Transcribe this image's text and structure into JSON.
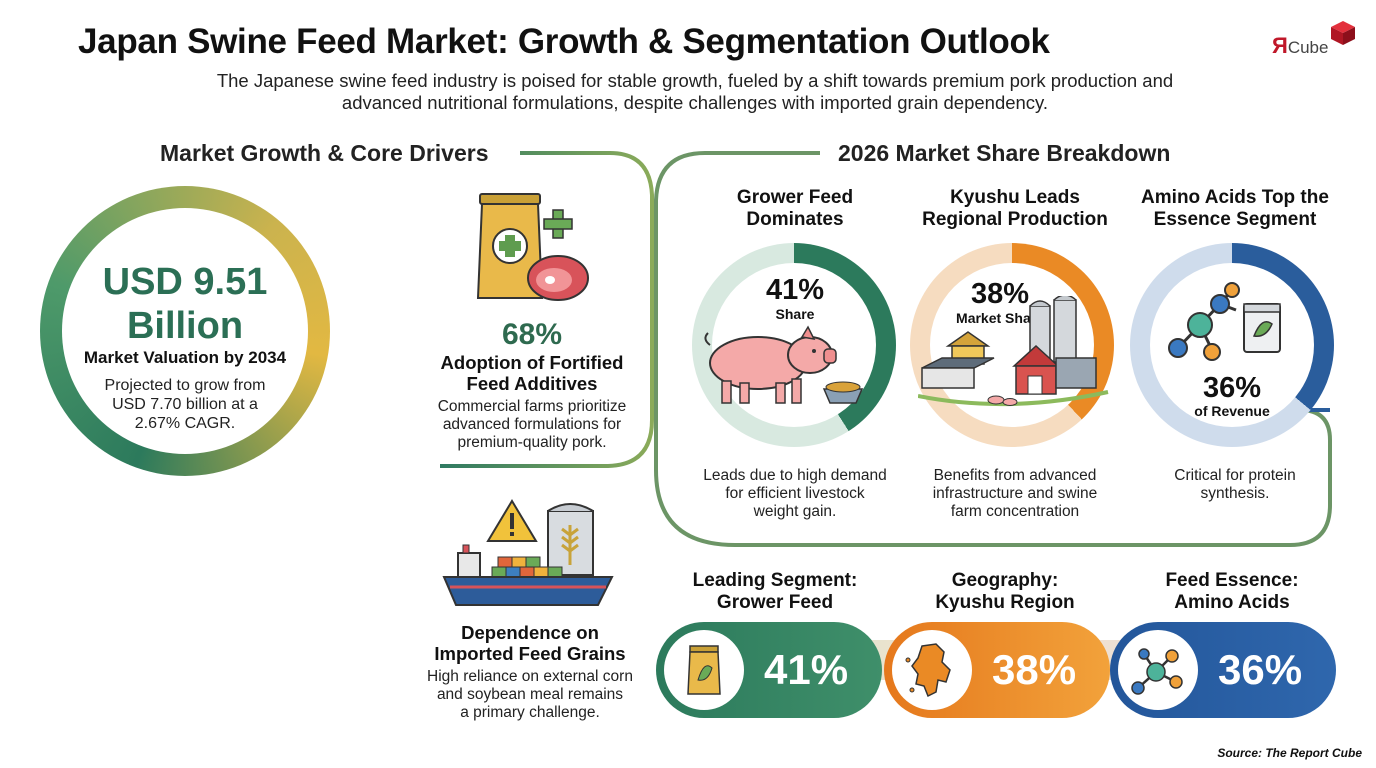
{
  "header": {
    "title": "Japan Swine Feed Market: Growth & Segmentation Outlook",
    "subtitle_line1": "The Japanese swine feed industry is poised for stable growth, fueled by a shift towards premium pork production and",
    "subtitle_line2": "advanced nutritional formulations, despite challenges with imported grain dependency."
  },
  "logo": {
    "letter": "Я",
    "text": "Cube"
  },
  "left_section": {
    "heading": "Market Growth & Core Drivers",
    "valuation": {
      "value_line1": "USD 9.51",
      "value_line2": "Billion",
      "label": "Market Valuation by 2034",
      "desc_line1": "Projected to grow from",
      "desc_line2": "USD 7.70 billion at a",
      "desc_line3": "2.67% CAGR."
    },
    "additives": {
      "stat": "68%",
      "heading_line1": "Adoption of Fortified",
      "heading_line2": "Feed Additives",
      "desc_line1": "Commercial farms prioritize",
      "desc_line2": "advanced formulations for",
      "desc_line3": "premium-quality pork."
    },
    "imports": {
      "heading_line1": "Dependence on",
      "heading_line2": "Imported Feed Grains",
      "desc_line1": "High reliance on external corn",
      "desc_line2": "and soybean meal remains",
      "desc_line3": "a primary challenge."
    }
  },
  "right_section": {
    "heading": "2026 Market Share Breakdown",
    "cards": [
      {
        "heading_line1": "Grower Feed",
        "heading_line2": "Dominates",
        "percent": "41%",
        "percent_label": "Share",
        "share_value": 41,
        "desc_line1": "Leads due to high demand",
        "desc_line2": "for efficient livestock",
        "desc_line3": "weight gain."
      },
      {
        "heading_line1": "Kyushu Leads",
        "heading_line2": "Regional Production",
        "percent": "38%",
        "percent_label": "Market Share",
        "share_value": 38,
        "desc_line1": "Benefits from advanced",
        "desc_line2": "infrastructure and swine",
        "desc_line3": "farm concentration"
      },
      {
        "heading_line1": "Amino Acids Top the",
        "heading_line2": "Essence Segment",
        "percent": "36%",
        "percent_label": "of Revenue",
        "share_value": 36,
        "desc_line1": "Critical for protein",
        "desc_line2": "synthesis.",
        "desc_line3": ""
      }
    ],
    "summary": [
      {
        "heading_line1": "Leading Segment:",
        "heading_line2": "Grower Feed",
        "value": "41%"
      },
      {
        "heading_line1": "Geography:",
        "heading_line2": "Kyushu Region",
        "value": "38%"
      },
      {
        "heading_line1": "Feed Essence:",
        "heading_line2": "Amino Acids",
        "value": "36%"
      }
    ]
  },
  "colors": {
    "green": "#2c7a5c",
    "orange": "#ea8a25",
    "blue": "#2a5d9c",
    "gold": "#e2b842"
  },
  "icons": [
    "feed-bag-icon",
    "meat-icon",
    "cargo-ship-icon",
    "warning-icon",
    "silo-icon",
    "pig-icon",
    "farm-icon",
    "molecule-icon",
    "map-icon"
  ],
  "footer": {
    "source": "Source: The Report Cube"
  }
}
